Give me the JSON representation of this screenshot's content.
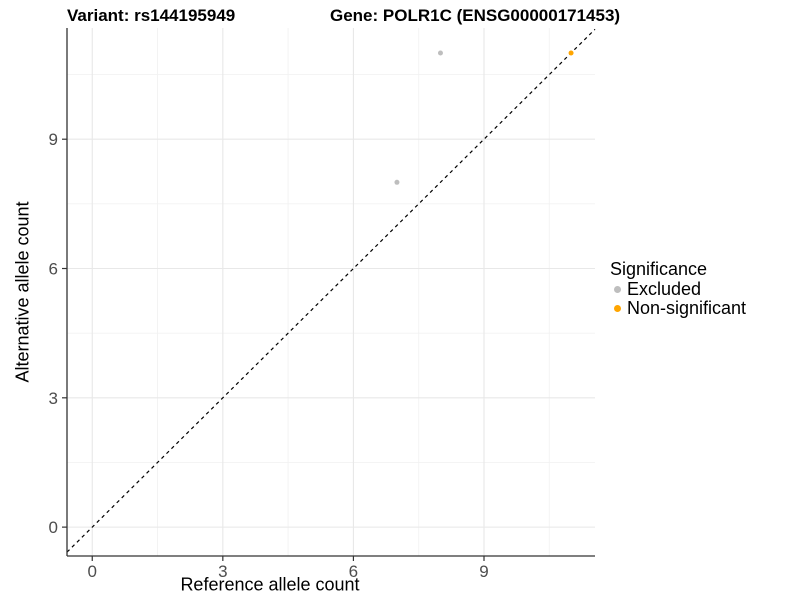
{
  "header": {
    "variant_title": "Variant: rs144195949",
    "gene_title": "Gene: POLR1C (ENSG00000171453)"
  },
  "chart_data": {
    "type": "scatter",
    "xlabel": "Reference allele count",
    "ylabel": "Alternative allele count",
    "xlim": [
      -0.58,
      11.55
    ],
    "ylim": [
      -0.67,
      11.58
    ],
    "x_breaks": [
      0,
      3,
      6,
      9
    ],
    "y_breaks": [
      0,
      3,
      6,
      9
    ],
    "x_minor_breaks": [
      1.5,
      4.5,
      7.5,
      10.5
    ],
    "y_minor_breaks": [
      1.5,
      4.5,
      7.5,
      10.5
    ],
    "grid": "major and minor gridlines on white panel",
    "identity_line": {
      "style": "dashed",
      "slope": 1,
      "intercept": 0,
      "color": "#000000"
    },
    "series": [
      {
        "name": "Excluded",
        "color": "#BEBEBE",
        "points": [
          {
            "x": 7,
            "y": 8
          },
          {
            "x": 8,
            "y": 11
          }
        ]
      },
      {
        "name": "Non-significant",
        "color": "#FFA500",
        "points": [
          {
            "x": 11,
            "y": 11
          }
        ]
      }
    ],
    "legend": {
      "title": "Significance",
      "position": "right",
      "items": [
        {
          "label": "Excluded",
          "color": "#BEBEBE"
        },
        {
          "label": "Non-significant",
          "color": "#FFA500"
        }
      ]
    }
  },
  "colors": {
    "background": "#FFFFFF",
    "grid_major": "#E8E8E8",
    "grid_minor": "#F2F2F2",
    "axis_line": "#333333",
    "tick_label": "#4D4D4D"
  }
}
